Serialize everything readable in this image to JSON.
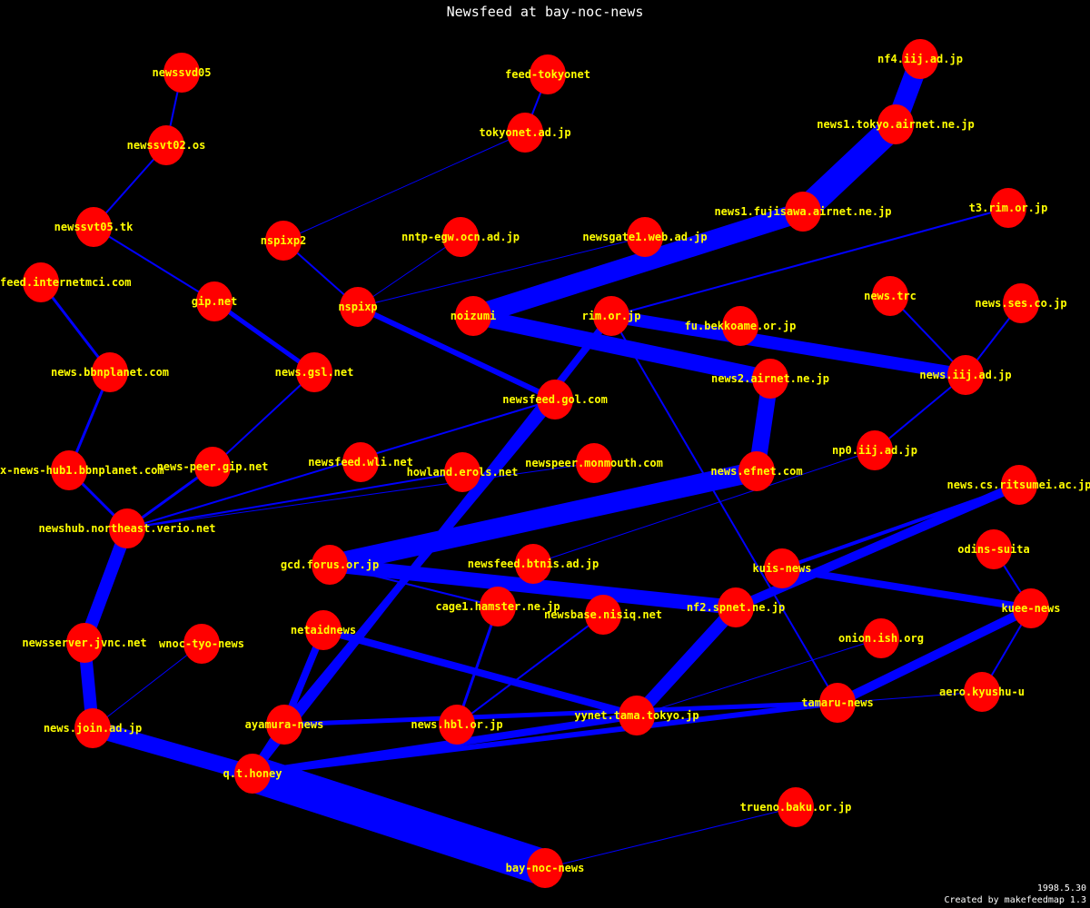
{
  "title": "Newsfeed at bay-noc-news",
  "footer": {
    "date": "1998.5.30",
    "credit": "Created by makefeedmap 1.3"
  },
  "colors": {
    "background": "#000000",
    "node": "#ff0000",
    "edge": "#0000ff",
    "label": "#ffff00",
    "title": "#ffffff"
  },
  "nodes": [
    "newssvd05",
    "newssvt02.os",
    "newssvt05.tk",
    "feed.internetmci.com",
    "gip.net",
    "nspixp2",
    "nspixp",
    "nntp-egw.ocn.ad.jp",
    "tokyonet.ad.jp",
    "feed-tokyonet",
    "noizumi",
    "newsgate1.web.ad.jp",
    "news1.fujisawa.airnet.ne.jp",
    "news1.tokyo.airnet.ne.jp",
    "nf4.iij.ad.jp",
    "t3.rim.or.jp",
    "rim.or.jp",
    "fu.bekkoame.or.jp",
    "news.trc",
    "news.ses.co.jp",
    "news2.airnet.ne.jp",
    "news.iij.ad.jp",
    "newsfeed.gol.com",
    "news.bbnplanet.com",
    "news.gsl.net",
    "np0.iij.ad.jp",
    "news-peer.gip.net",
    "newsfeed.wli.net",
    "howland.erols.net",
    "newspeer.monmouth.com",
    "news.efnet.com",
    "news.cs.ritsumei.ac.jp",
    "x-news-hub1.bbnplanet.com",
    "newshub.northeast.verio.net",
    "gcd.forus.or.jp",
    "newsfeed.btnis.ad.jp",
    "odins-suita",
    "kuis-news",
    "cage1.hamster.ne.jp",
    "newsbase.nisiq.net",
    "nf2.spnet.ne.jp",
    "kuee-news",
    "netaidnews",
    "newsserver.jvnc.net",
    "wnoc-tyo-news",
    "onion.ish.org",
    "aero.kyushu-u",
    "tamaru-news",
    "yynet.tama.tokyo.jp",
    "ayamura-news",
    "news.hbl.or.jp",
    "news.join.ad.jp",
    "q.t.honey",
    "trueno.baku.or.jp",
    "bay-noc-news"
  ],
  "edges": [
    {
      "from": "newssvd05",
      "to": "newssvt02.os",
      "weight": 2
    },
    {
      "from": "newssvt02.os",
      "to": "newssvt05.tk",
      "weight": 2
    },
    {
      "from": "newssvt05.tk",
      "to": "gip.net",
      "weight": 2
    },
    {
      "from": "gip.net",
      "to": "news.gsl.net",
      "weight": 5
    },
    {
      "from": "news.gsl.net",
      "to": "news-peer.gip.net",
      "weight": 2
    },
    {
      "from": "news-peer.gip.net",
      "to": "newshub.northeast.verio.net",
      "weight": 3
    },
    {
      "from": "feed.internetmci.com",
      "to": "news.bbnplanet.com",
      "weight": 3
    },
    {
      "from": "news.bbnplanet.com",
      "to": "x-news-hub1.bbnplanet.com",
      "weight": 3
    },
    {
      "from": "x-news-hub1.bbnplanet.com",
      "to": "newshub.northeast.verio.net",
      "weight": 3
    },
    {
      "from": "newshub.northeast.verio.net",
      "to": "newsfeed.gol.com",
      "weight": 2
    },
    {
      "from": "newshub.northeast.verio.net",
      "to": "howland.erols.net",
      "weight": 2
    },
    {
      "from": "newshub.northeast.verio.net",
      "to": "newspeer.monmouth.com",
      "weight": 1
    },
    {
      "from": "newshub.northeast.verio.net",
      "to": "newsserver.jvnc.net",
      "weight": 14
    },
    {
      "from": "newsserver.jvnc.net",
      "to": "news.join.ad.jp",
      "weight": 14
    },
    {
      "from": "news.join.ad.jp",
      "to": "wnoc-tyo-news",
      "weight": 1
    },
    {
      "from": "news.join.ad.jp",
      "to": "q.t.honey",
      "weight": 18
    },
    {
      "from": "q.t.honey",
      "to": "bay-noc-news",
      "weight": 40
    },
    {
      "from": "bay-noc-news",
      "to": "trueno.baku.or.jp",
      "weight": 1
    },
    {
      "from": "tokyonet.ad.jp",
      "to": "feed-tokyonet",
      "weight": 2
    },
    {
      "from": "tokyonet.ad.jp",
      "to": "nspixp2",
      "weight": 1
    },
    {
      "from": "nspixp2",
      "to": "nspixp",
      "weight": 2
    },
    {
      "from": "nspixp",
      "to": "nntp-egw.ocn.ad.jp",
      "weight": 1
    },
    {
      "from": "nspixp",
      "to": "newsgate1.web.ad.jp",
      "weight": 1
    },
    {
      "from": "nspixp",
      "to": "newsfeed.gol.com",
      "weight": 6
    },
    {
      "from": "noizumi",
      "to": "news1.fujisawa.airnet.ne.jp",
      "weight": 22
    },
    {
      "from": "news1.fujisawa.airnet.ne.jp",
      "to": "news1.tokyo.airnet.ne.jp",
      "weight": 28
    },
    {
      "from": "news1.tokyo.airnet.ne.jp",
      "to": "nf4.iij.ad.jp",
      "weight": 22
    },
    {
      "from": "noizumi",
      "to": "news2.airnet.ne.jp",
      "weight": 18
    },
    {
      "from": "news2.airnet.ne.jp",
      "to": "news.efnet.com",
      "weight": 18
    },
    {
      "from": "news.efnet.com",
      "to": "gcd.forus.or.jp",
      "weight": 22
    },
    {
      "from": "gcd.forus.or.jp",
      "to": "nf2.spnet.ne.jp",
      "weight": 16
    },
    {
      "from": "gcd.forus.or.jp",
      "to": "cage1.hamster.ne.jp",
      "weight": 2
    },
    {
      "from": "rim.or.jp",
      "to": "news.iij.ad.jp",
      "weight": 14
    },
    {
      "from": "rim.or.jp",
      "to": "t3.rim.or.jp",
      "weight": 2
    },
    {
      "from": "rim.or.jp",
      "to": "q.t.honey",
      "weight": 8
    },
    {
      "from": "newsfeed.gol.com",
      "to": "ayamura-news",
      "weight": 8
    },
    {
      "from": "rim.or.jp",
      "to": "tamaru-news",
      "weight": 2
    },
    {
      "from": "news.iij.ad.jp",
      "to": "news.trc",
      "weight": 2
    },
    {
      "from": "news.iij.ad.jp",
      "to": "news.ses.co.jp",
      "weight": 2
    },
    {
      "from": "news.iij.ad.jp",
      "to": "np0.iij.ad.jp",
      "weight": 2
    },
    {
      "from": "np0.iij.ad.jp",
      "to": "newsfeed.btnis.ad.jp",
      "weight": 1
    },
    {
      "from": "cage1.hamster.ne.jp",
      "to": "news.hbl.or.jp",
      "weight": 3
    },
    {
      "from": "newsbase.nisiq.net",
      "to": "news.hbl.or.jp",
      "weight": 2
    },
    {
      "from": "netaidnews",
      "to": "yynet.tama.tokyo.jp",
      "weight": 8
    },
    {
      "from": "netaidnews",
      "to": "ayamura-news",
      "weight": 8
    },
    {
      "from": "ayamura-news",
      "to": "q.t.honey",
      "weight": 10
    },
    {
      "from": "ayamura-news",
      "to": "tamaru-news",
      "weight": 5
    },
    {
      "from": "q.t.honey",
      "to": "yynet.tama.tokyo.jp",
      "weight": 8
    },
    {
      "from": "q.t.honey",
      "to": "tamaru-news",
      "weight": 6
    },
    {
      "from": "yynet.tama.tokyo.jp",
      "to": "nf2.spnet.ne.jp",
      "weight": 14
    },
    {
      "from": "nf2.spnet.ne.jp",
      "to": "news.cs.ritsumei.ac.jp",
      "weight": 10
    },
    {
      "from": "kuis-news",
      "to": "news.cs.ritsumei.ac.jp",
      "weight": 4
    },
    {
      "from": "kuis-news",
      "to": "kuee-news",
      "weight": 8
    },
    {
      "from": "kuee-news",
      "to": "odins-suita",
      "weight": 2
    },
    {
      "from": "kuee-news",
      "to": "aero.kyushu-u",
      "weight": 2
    },
    {
      "from": "kuee-news",
      "to": "tamaru-news",
      "weight": 10
    },
    {
      "from": "tamaru-news",
      "to": "aero.kyushu-u",
      "weight": 1
    },
    {
      "from": "yynet.tama.tokyo.jp",
      "to": "onion.ish.org",
      "weight": 1
    }
  ]
}
